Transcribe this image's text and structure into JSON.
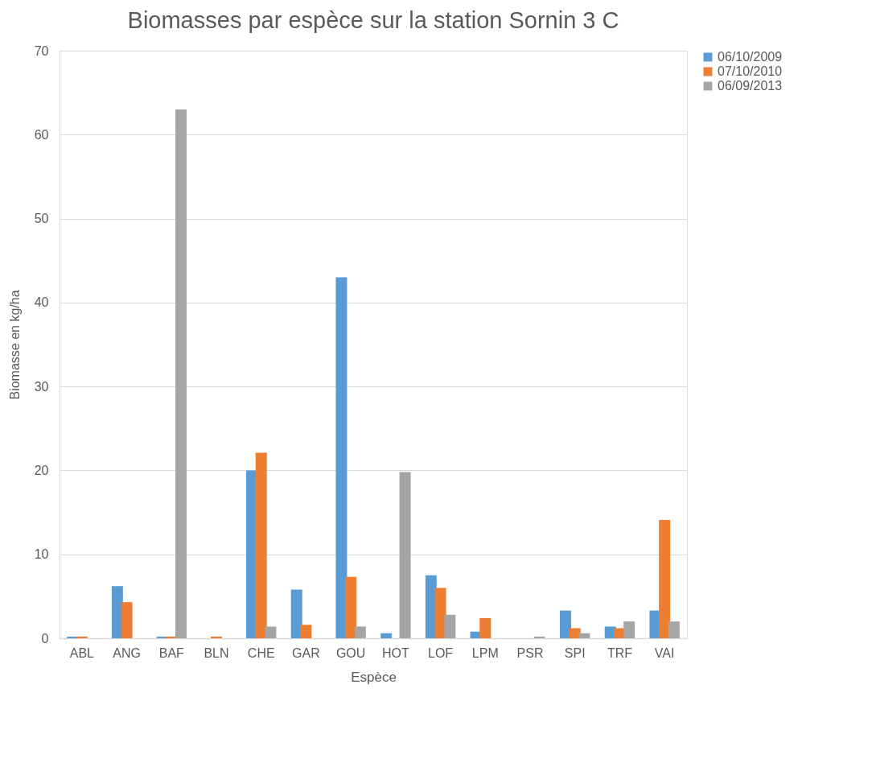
{
  "chart_data": {
    "type": "bar",
    "title": "Biomasses par espèce sur la station Sornin 3 C",
    "xlabel": "Espèce",
    "ylabel": "Biomasse en kg/ha",
    "categories": [
      "ABL",
      "ANG",
      "BAF",
      "BLN",
      "CHE",
      "GAR",
      "GOU",
      "HOT",
      "LOF",
      "LPM",
      "PSR",
      "SPI",
      "TRF",
      "VAI"
    ],
    "series": [
      {
        "name": "06/10/2009",
        "color": "#5b9bd5",
        "values": [
          0.2,
          6.2,
          0.2,
          null,
          20,
          5.8,
          43,
          0.6,
          7.5,
          0.8,
          null,
          3.3,
          1.4,
          3.3
        ]
      },
      {
        "name": "07/10/2010",
        "color": "#ed7d31",
        "values": [
          0.2,
          4.3,
          0.2,
          0.2,
          22.1,
          1.6,
          7.3,
          null,
          6.0,
          2.4,
          null,
          1.2,
          1.2,
          14.1
        ]
      },
      {
        "name": "06/09/2013",
        "color": "#a5a5a5",
        "values": [
          null,
          null,
          63,
          null,
          1.4,
          null,
          1.4,
          19.8,
          2.8,
          null,
          0.2,
          0.6,
          2.0,
          2.0
        ]
      }
    ],
    "ylim": [
      0,
      70
    ],
    "yticks": [
      0,
      10,
      20,
      30,
      40,
      50,
      60,
      70
    ],
    "grid": "y",
    "legend": "right"
  }
}
